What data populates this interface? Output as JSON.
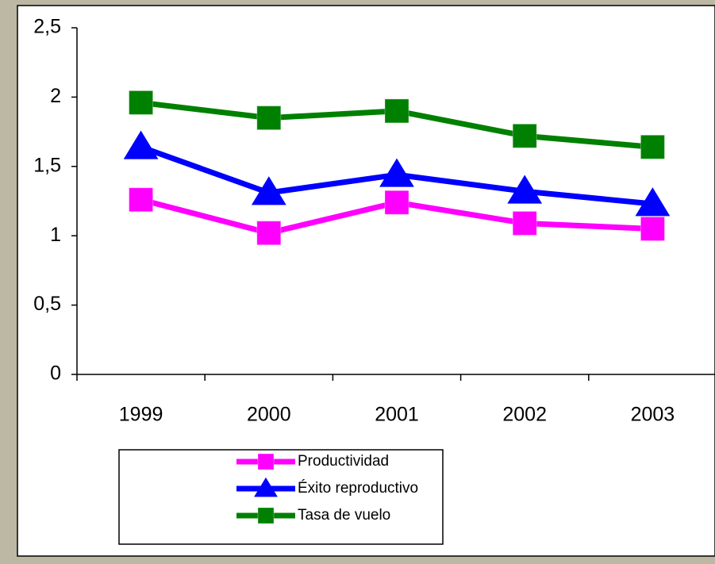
{
  "chart_data": {
    "type": "line",
    "categories": [
      "1999",
      "2000",
      "2001",
      "2002",
      "2003"
    ],
    "series": [
      {
        "name": "Productividad",
        "color": "#ff00ff",
        "marker": "square",
        "values": [
          1.26,
          1.02,
          1.24,
          1.09,
          1.05
        ]
      },
      {
        "name": "Éxito reproductivo",
        "color": "#0000ff",
        "marker": "triangle",
        "values": [
          1.64,
          1.31,
          1.44,
          1.32,
          1.23
        ]
      },
      {
        "name": "Tasa de vuelo",
        "color": "#008000",
        "marker": "square",
        "values": [
          1.96,
          1.85,
          1.9,
          1.72,
          1.64
        ]
      }
    ],
    "ylim": [
      0,
      2.5
    ],
    "yticks": [
      0,
      {
        "value": 0.5,
        "label": "0,5"
      },
      1,
      {
        "value": 1.5,
        "label": "1,5"
      },
      2,
      {
        "value": 2.5,
        "label": "2,5"
      }
    ],
    "legend": "bottom"
  }
}
